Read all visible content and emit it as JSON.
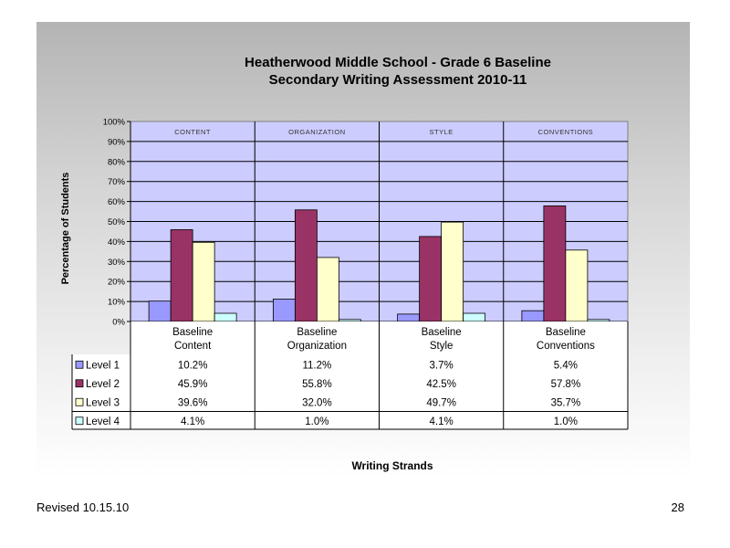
{
  "chart_data": {
    "type": "bar",
    "title_lines": [
      "Heatherwood Middle School - Grade 6 Baseline",
      "Secondary Writing Assessment 2010-11"
    ],
    "xlabel": "Writing Strands",
    "ylabel": "Percentage of Students",
    "ylim": [
      0,
      100
    ],
    "y_ticks": [
      "0%",
      "10%",
      "20%",
      "30%",
      "40%",
      "50%",
      "60%",
      "70%",
      "80%",
      "90%",
      "100%"
    ],
    "y_tick_values": [
      0,
      10,
      20,
      30,
      40,
      50,
      60,
      70,
      80,
      90,
      100
    ],
    "section_labels": [
      "CONTENT",
      "ORGANIZATION",
      "STYLE",
      "CONVENTIONS"
    ],
    "categories": [
      [
        "Baseline",
        "Content"
      ],
      [
        "Baseline",
        "Organization"
      ],
      [
        "Baseline",
        "Style"
      ],
      [
        "Baseline",
        "Conventions"
      ]
    ],
    "series": [
      {
        "name": "Level 1",
        "color": "#9999ff",
        "values": [
          10.2,
          11.2,
          3.7,
          5.4
        ],
        "labels": [
          "10.2%",
          "11.2%",
          "3.7%",
          "5.4%"
        ]
      },
      {
        "name": "Level 2",
        "color": "#993366",
        "values": [
          45.9,
          55.8,
          42.5,
          57.8
        ],
        "labels": [
          "45.9%",
          "55.8%",
          "42.5%",
          "57.8%"
        ]
      },
      {
        "name": "Level 3",
        "color": "#ffffcc",
        "values": [
          39.6,
          32.0,
          49.7,
          35.7
        ],
        "labels": [
          "39.6%",
          "32.0%",
          "49.7%",
          "35.7%"
        ]
      },
      {
        "name": "Level 4",
        "color": "#ccffff",
        "values": [
          4.1,
          1.0,
          4.1,
          1.0
        ],
        "labels": [
          "4.1%",
          "1.0%",
          "4.1%",
          "1.0%"
        ]
      }
    ],
    "plot_background": "#ccccff",
    "grid": true,
    "legend": "data-table"
  },
  "footer": {
    "revised": "Revised  10.15.10",
    "page_number": "28"
  }
}
